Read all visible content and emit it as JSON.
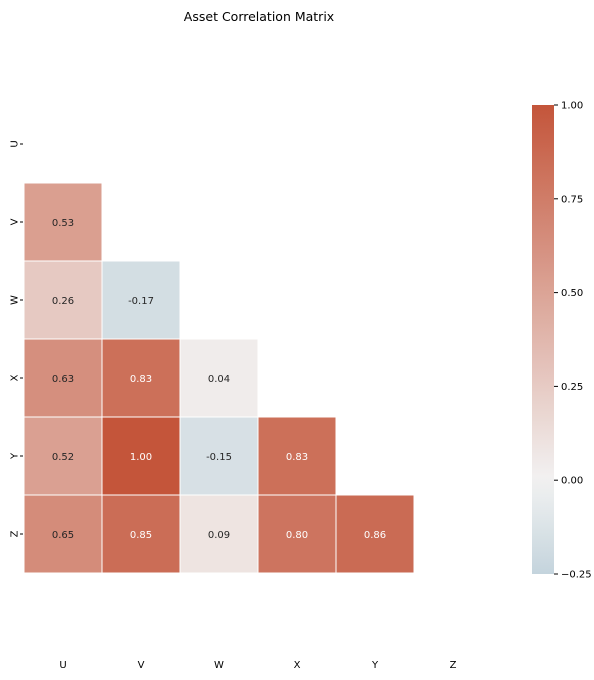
{
  "chart_data": {
    "type": "heatmap",
    "title": "Asset Correlation Matrix",
    "variables": [
      "U",
      "V",
      "W",
      "X",
      "Y",
      "Z"
    ],
    "mask": "upper-triangle-including-diagonal",
    "cells": [
      {
        "row": "V",
        "col": "U",
        "value": 0.53
      },
      {
        "row": "W",
        "col": "U",
        "value": 0.26
      },
      {
        "row": "W",
        "col": "V",
        "value": -0.17
      },
      {
        "row": "X",
        "col": "U",
        "value": 0.63
      },
      {
        "row": "X",
        "col": "V",
        "value": 0.83
      },
      {
        "row": "X",
        "col": "W",
        "value": 0.04
      },
      {
        "row": "Y",
        "col": "U",
        "value": 0.52
      },
      {
        "row": "Y",
        "col": "V",
        "value": 1.0
      },
      {
        "row": "Y",
        "col": "W",
        "value": -0.15
      },
      {
        "row": "Y",
        "col": "X",
        "value": 0.83
      },
      {
        "row": "Z",
        "col": "U",
        "value": 0.65
      },
      {
        "row": "Z",
        "col": "V",
        "value": 0.85
      },
      {
        "row": "Z",
        "col": "W",
        "value": 0.09
      },
      {
        "row": "Z",
        "col": "X",
        "value": 0.8
      },
      {
        "row": "Z",
        "col": "Y",
        "value": 0.86
      }
    ],
    "value_format": "2 decimals",
    "colorbar": {
      "range": [
        -0.25,
        1.0
      ],
      "ticks": [
        -0.25,
        0.0,
        0.25,
        0.5,
        0.75,
        1.0
      ],
      "tick_labels": [
        "−0.25",
        "0.00",
        "0.25",
        "0.50",
        "0.75",
        "1.00"
      ],
      "colormap": "diverging blue-white-red",
      "center": 0.0,
      "colors": {
        "negative": "#3b7a9c",
        "center": "#f2f2f2",
        "positive": "#c4553a"
      }
    },
    "grid": false,
    "cell_border_color": "#ffffff",
    "legend": "colorbar at right"
  }
}
